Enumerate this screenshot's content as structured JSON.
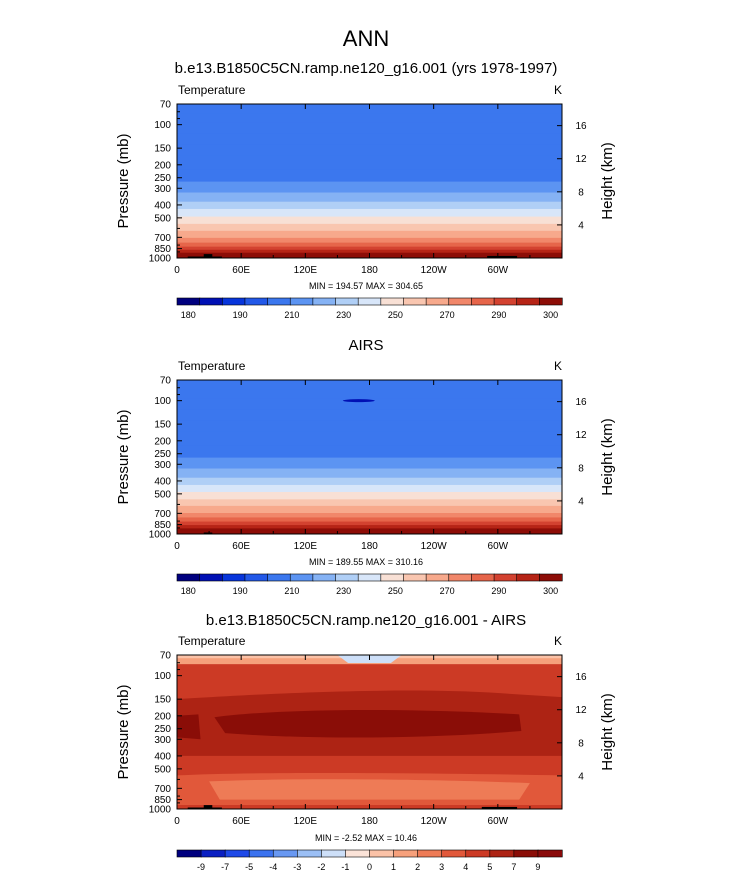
{
  "figure": {
    "title": "ANN"
  },
  "colors": {
    "temp_palette": [
      "#00007f",
      "#0010b4",
      "#0735db",
      "#2258e8",
      "#3b77ee",
      "#5c94f2",
      "#85b2f4",
      "#b0cff6",
      "#d8e6f9",
      "#f8e0d5",
      "#f9c6b0",
      "#f7a98c",
      "#f1876a",
      "#e6654a",
      "#d34230",
      "#b62416",
      "#8d0d07"
    ],
    "diff_palette": [
      "#00007f",
      "#0a1fc2",
      "#1e49e8",
      "#3b72ef",
      "#6898f2",
      "#9bbff5",
      "#cddff8",
      "#fbe3d8",
      "#fbc2a7",
      "#f6a07b",
      "#ee7b56",
      "#e1583a",
      "#cc3a25",
      "#ad2314",
      "#8a0d07",
      "#8a0a0a"
    ]
  },
  "chart_data": [
    {
      "type": "heatmap",
      "panel": "model",
      "title": "b.e13.B1850C5CN.ramp.ne120_g16.001 (yrs 1978-1997)",
      "left_label": "Temperature",
      "units": "K",
      "ylabel": "Pressure (mb)",
      "ylabel_right": "Height (km)",
      "pressure_ticks": [
        "70",
        "100",
        "150",
        "200",
        "250",
        "300",
        "400",
        "500",
        "700",
        "850",
        "1000"
      ],
      "pressure_values": [
        70,
        100,
        150,
        200,
        250,
        300,
        400,
        500,
        700,
        850,
        1000
      ],
      "height_ticks": [
        "16",
        "12",
        "8",
        "4"
      ],
      "height_km": [
        16,
        12,
        8,
        4
      ],
      "lon_ticks": [
        "0",
        "60E",
        "120E",
        "180",
        "120W",
        "60W"
      ],
      "xlim": [
        0,
        360
      ],
      "ylim": [
        1000,
        70
      ],
      "min_max": "MIN = 194.57  MAX = 304.65",
      "colorbar_labels": [
        "180",
        "190",
        "210",
        "230",
        "250",
        "270",
        "290",
        "300"
      ],
      "layer_bottoms_mb": [
        1000,
        945,
        905,
        860,
        815,
        760,
        700,
        620,
        550,
        485,
        425,
        375,
        320,
        265,
        215,
        170,
        140,
        115,
        95,
        82,
        70
      ],
      "layer_colors": [
        17,
        16,
        15,
        14,
        13,
        12,
        11,
        10,
        9,
        8,
        7,
        6,
        5,
        4,
        4,
        4,
        4,
        4,
        4,
        4
      ],
      "terrain_mb": [
        {
          "lon": 10,
          "lon2": 42,
          "p": 975
        },
        {
          "lon": 25,
          "lon2": 33,
          "p": 935
        },
        {
          "lon": 290,
          "lon2": 318,
          "p": 965
        }
      ]
    },
    {
      "type": "heatmap",
      "panel": "obs",
      "title": "AIRS",
      "left_label": "Temperature",
      "units": "K",
      "ylabel": "Pressure (mb)",
      "ylabel_right": "Height (km)",
      "pressure_ticks": [
        "70",
        "100",
        "150",
        "200",
        "250",
        "300",
        "400",
        "500",
        "700",
        "850",
        "1000"
      ],
      "pressure_values": [
        70,
        100,
        150,
        200,
        250,
        300,
        400,
        500,
        700,
        850,
        1000
      ],
      "height_ticks": [
        "16",
        "12",
        "8",
        "4"
      ],
      "height_km": [
        16,
        12,
        8,
        4
      ],
      "lon_ticks": [
        "0",
        "60E",
        "120E",
        "180",
        "120W",
        "60W"
      ],
      "xlim": [
        0,
        360
      ],
      "ylim": [
        1000,
        70
      ],
      "min_max": "MIN = 189.55  MAX = 310.16",
      "colorbar_labels": [
        "180",
        "190",
        "210",
        "230",
        "250",
        "270",
        "290",
        "300"
      ],
      "layer_bottoms_mb": [
        1000,
        940,
        900,
        850,
        800,
        745,
        690,
        610,
        545,
        480,
        425,
        375,
        320,
        265,
        215,
        170,
        140,
        115,
        95,
        82,
        70
      ],
      "layer_colors": [
        17,
        16,
        15,
        14,
        13,
        12,
        11,
        10,
        9,
        8,
        7,
        6,
        5,
        4,
        4,
        4,
        4,
        4,
        4,
        4
      ],
      "terrain_mb": [
        {
          "lon": 25,
          "lon2": 33,
          "p": 975
        }
      ]
    },
    {
      "type": "heatmap",
      "panel": "difference",
      "title": "b.e13.B1850C5CN.ramp.ne120_g16.001 - AIRS",
      "left_label": "Temperature",
      "units": "K",
      "ylabel": "Pressure (mb)",
      "ylabel_right": "Height (km)",
      "pressure_ticks": [
        "70",
        "100",
        "150",
        "200",
        "250",
        "300",
        "400",
        "500",
        "700",
        "850",
        "1000"
      ],
      "pressure_values": [
        70,
        100,
        150,
        200,
        250,
        300,
        400,
        500,
        700,
        850,
        1000
      ],
      "height_ticks": [
        "16",
        "12",
        "8",
        "4"
      ],
      "height_km": [
        16,
        12,
        8,
        4
      ],
      "lon_ticks": [
        "0",
        "60E",
        "120E",
        "180",
        "120W",
        "60W"
      ],
      "xlim": [
        0,
        360
      ],
      "ylim": [
        1000,
        70
      ],
      "min_max": "MIN = -2.52  MAX = 10.46",
      "colorbar_labels": [
        "-9",
        "-7",
        "-5",
        "-4",
        "-3",
        "-2",
        "-1",
        "0",
        "1",
        "2",
        "3",
        "4",
        "5",
        "7",
        "9"
      ],
      "terrain_mb": [
        {
          "lon": 10,
          "lon2": 42,
          "p": 975
        },
        {
          "lon": 25,
          "lon2": 33,
          "p": 935
        },
        {
          "lon": 285,
          "lon2": 318,
          "p": 965
        }
      ]
    }
  ]
}
